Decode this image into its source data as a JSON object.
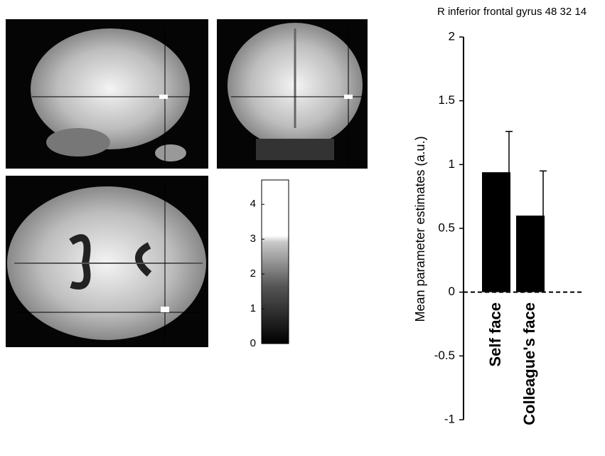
{
  "chart_data": [
    {
      "type": "bar",
      "title": "R inferior frontal gyrus 48 32 14",
      "ylabel": "Mean parameter estimates (a.u.)",
      "categories": [
        "Self face",
        "Colleague's face"
      ],
      "values": [
        0.94,
        0.6
      ],
      "errors": [
        0.32,
        0.35
      ],
      "color": "#000000",
      "ylim": [
        -1,
        2
      ],
      "yticks": [
        -1,
        -0.5,
        0,
        0.5,
        1,
        1.5,
        2
      ]
    },
    {
      "type": "colorbar",
      "ylim": [
        0,
        4.7
      ],
      "yticks": [
        0,
        1,
        2,
        3,
        4
      ]
    }
  ]
}
